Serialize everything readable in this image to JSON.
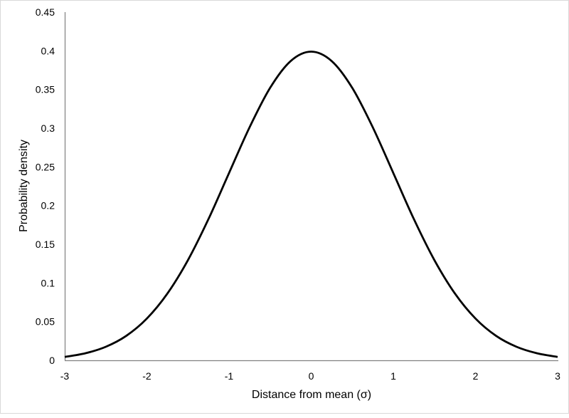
{
  "chart_data": {
    "type": "line",
    "title": "",
    "xlabel": "Distance from mean (σ)",
    "ylabel": "Probability density",
    "xlim": [
      -3,
      3
    ],
    "ylim": [
      0,
      0.45
    ],
    "xticks": [
      "-3",
      "-2",
      "-1",
      "0",
      "1",
      "2",
      "3"
    ],
    "yticks": [
      "0",
      "0.05",
      "0.1",
      "0.15",
      "0.2",
      "0.25",
      "0.3",
      "0.35",
      "0.4",
      "0.45"
    ],
    "grid": false,
    "legend": "none",
    "line_color": "#000000",
    "series": [
      {
        "x": [
          -3,
          -2.75,
          -2.5,
          -2.25,
          -2,
          -1.75,
          -1.5,
          -1.25,
          -1,
          -0.75,
          -0.5,
          -0.25,
          0,
          0.25,
          0.5,
          0.75,
          1,
          1.25,
          1.5,
          1.75,
          2,
          2.25,
          2.5,
          2.75,
          3
        ],
        "y": [
          0.0044,
          0.0091,
          0.0175,
          0.0317,
          0.054,
          0.0863,
          0.1295,
          0.1826,
          0.242,
          0.3011,
          0.3521,
          0.3867,
          0.3989,
          0.3867,
          0.3521,
          0.3011,
          0.242,
          0.1826,
          0.1295,
          0.0863,
          0.054,
          0.0317,
          0.0175,
          0.0091,
          0.0044
        ]
      }
    ]
  }
}
